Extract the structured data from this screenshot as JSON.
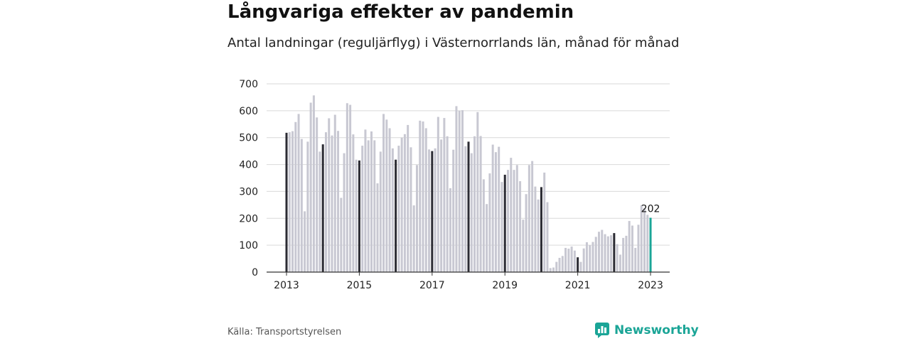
{
  "title": "Långvariga effekter av pandemin",
  "subtitle": "Antal landningar (reguljärflyg) i Västernorrlands län, månad för månad",
  "source": "Källa: Transportstyrelsen",
  "brand": "Newsworthy",
  "colors": {
    "bar": "#c8c8d2",
    "january_bar": "#2b2b33",
    "latest_bar": "#1ba597",
    "grid": "#d9d9d9",
    "axis": "#333333"
  },
  "chart_data": {
    "type": "bar",
    "start_month": "2013-01",
    "ylim": [
      0,
      700
    ],
    "yticks": [
      0,
      100,
      200,
      300,
      400,
      500,
      600,
      700
    ],
    "xtick_labels": [
      "2013",
      "2015",
      "2017",
      "2019",
      "2021",
      "2023"
    ],
    "annotation": "202",
    "values": [
      518,
      520,
      524,
      558,
      588,
      495,
      226,
      485,
      630,
      657,
      575,
      448,
      475,
      520,
      572,
      508,
      585,
      525,
      276,
      442,
      628,
      622,
      512,
      418,
      415,
      470,
      530,
      490,
      523,
      490,
      330,
      448,
      588,
      567,
      535,
      460,
      418,
      470,
      500,
      513,
      547,
      464,
      248,
      398,
      563,
      560,
      535,
      456,
      450,
      460,
      577,
      493,
      573,
      505,
      312,
      455,
      617,
      600,
      602,
      468,
      485,
      442,
      505,
      595,
      506,
      345,
      253,
      367,
      474,
      446,
      466,
      335,
      362,
      380,
      425,
      380,
      398,
      338,
      195,
      290,
      398,
      413,
      318,
      270,
      316,
      370,
      260,
      15,
      17,
      38,
      53,
      60,
      90,
      87,
      95,
      80,
      55,
      38,
      88,
      111,
      100,
      112,
      131,
      150,
      157,
      141,
      133,
      137,
      145,
      104,
      65,
      127,
      135,
      190,
      173,
      90,
      176,
      248,
      238,
      213,
      202
    ]
  }
}
